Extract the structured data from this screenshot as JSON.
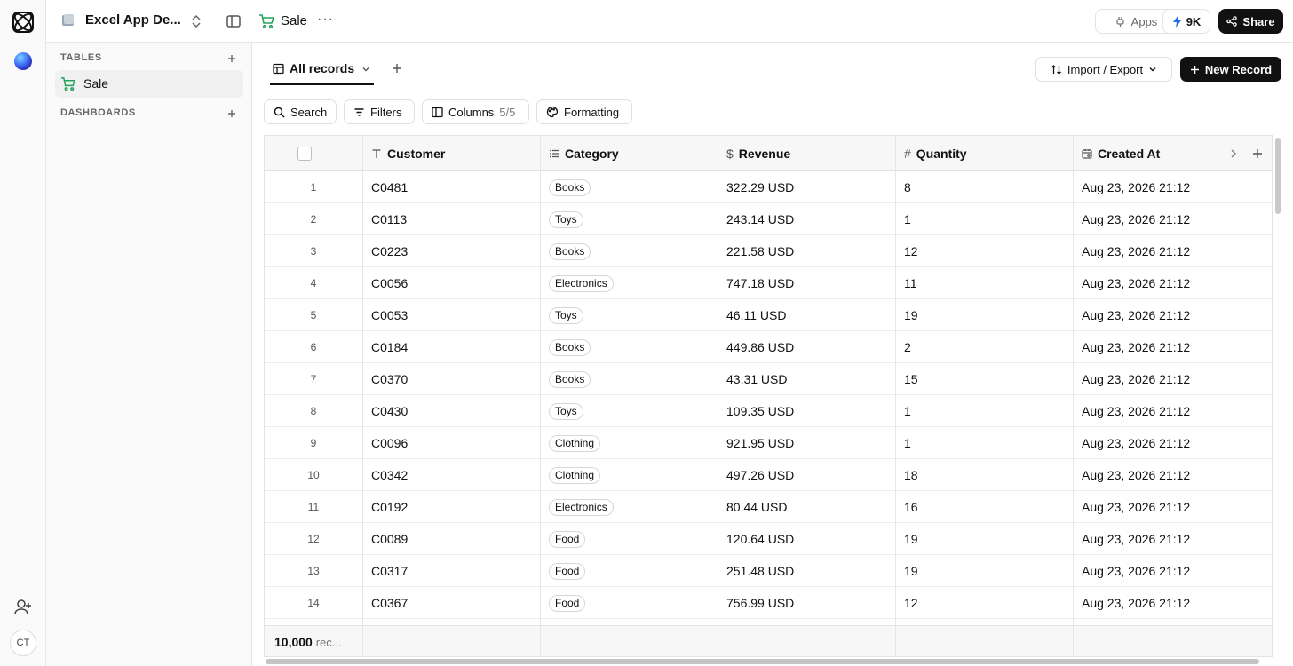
{
  "app": {
    "base_name": "Excel App De...",
    "user_initials": "CT"
  },
  "topbar": {
    "table_name": "Sale",
    "more_label": "···",
    "apps_label": "Apps",
    "credits_label": "9K",
    "share_label": "Share"
  },
  "sidebar": {
    "tables_heading": "TABLES",
    "dashboards_heading": "DASHBOARDS",
    "items": [
      {
        "label": "Sale"
      }
    ]
  },
  "view": {
    "tab_label": "All records",
    "import_export_label": "Import / Export",
    "new_record_label": "New Record"
  },
  "toolbar": {
    "search_label": "Search",
    "filters_label": "Filters",
    "columns_label": "Columns",
    "columns_count": "5/5",
    "formatting_label": "Formatting"
  },
  "table": {
    "columns": [
      {
        "label": "Customer",
        "icon": "text-type-icon"
      },
      {
        "label": "Category",
        "icon": "list-icon"
      },
      {
        "label": "Revenue",
        "icon": "dollar-icon"
      },
      {
        "label": "Quantity",
        "icon": "hash-icon"
      },
      {
        "label": "Created At",
        "icon": "calendar-icon"
      }
    ],
    "rows": [
      {
        "num": "1",
        "customer": "C0481",
        "category": "Books",
        "revenue": "322.29 USD",
        "quantity": "8",
        "created": "Aug 23, 2026 21:12"
      },
      {
        "num": "2",
        "customer": "C0113",
        "category": "Toys",
        "revenue": "243.14 USD",
        "quantity": "1",
        "created": "Aug 23, 2026 21:12"
      },
      {
        "num": "3",
        "customer": "C0223",
        "category": "Books",
        "revenue": "221.58 USD",
        "quantity": "12",
        "created": "Aug 23, 2026 21:12"
      },
      {
        "num": "4",
        "customer": "C0056",
        "category": "Electronics",
        "revenue": "747.18 USD",
        "quantity": "11",
        "created": "Aug 23, 2026 21:12"
      },
      {
        "num": "5",
        "customer": "C0053",
        "category": "Toys",
        "revenue": "46.11 USD",
        "quantity": "19",
        "created": "Aug 23, 2026 21:12"
      },
      {
        "num": "6",
        "customer": "C0184",
        "category": "Books",
        "revenue": "449.86 USD",
        "quantity": "2",
        "created": "Aug 23, 2026 21:12"
      },
      {
        "num": "7",
        "customer": "C0370",
        "category": "Books",
        "revenue": "43.31 USD",
        "quantity": "15",
        "created": "Aug 23, 2026 21:12"
      },
      {
        "num": "8",
        "customer": "C0430",
        "category": "Toys",
        "revenue": "109.35 USD",
        "quantity": "1",
        "created": "Aug 23, 2026 21:12"
      },
      {
        "num": "9",
        "customer": "C0096",
        "category": "Clothing",
        "revenue": "921.95 USD",
        "quantity": "1",
        "created": "Aug 23, 2026 21:12"
      },
      {
        "num": "10",
        "customer": "C0342",
        "category": "Clothing",
        "revenue": "497.26 USD",
        "quantity": "18",
        "created": "Aug 23, 2026 21:12"
      },
      {
        "num": "11",
        "customer": "C0192",
        "category": "Electronics",
        "revenue": "80.44 USD",
        "quantity": "16",
        "created": "Aug 23, 2026 21:12"
      },
      {
        "num": "12",
        "customer": "C0089",
        "category": "Food",
        "revenue": "120.64 USD",
        "quantity": "19",
        "created": "Aug 23, 2026 21:12"
      },
      {
        "num": "13",
        "customer": "C0317",
        "category": "Food",
        "revenue": "251.48 USD",
        "quantity": "19",
        "created": "Aug 23, 2026 21:12"
      },
      {
        "num": "14",
        "customer": "C0367",
        "category": "Food",
        "revenue": "756.99 USD",
        "quantity": "12",
        "created": "Aug 23, 2026 21:12"
      }
    ],
    "footer_count": "10,000",
    "footer_suffix": "rec..."
  },
  "colors": {
    "accent_green": "#22a35a",
    "primary_dark": "#111111",
    "credits_blue": "#1f6feb"
  }
}
